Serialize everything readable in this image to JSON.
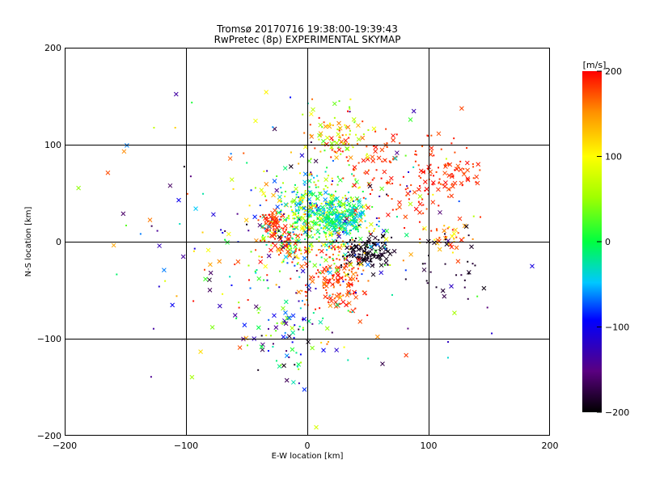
{
  "chart_data": {
    "type": "scatter",
    "title": "Tromsø 20170716 19:38:00-19:39:43",
    "subtitle": "RwPretec (8p) EXPERIMENTAL SKYMAP",
    "xlabel": "E-W location [km]",
    "ylabel": "N-S location [km]",
    "xlim": [
      -200,
      200
    ],
    "ylim": [
      -200,
      200
    ],
    "xticks": [
      -200,
      -100,
      0,
      100,
      200
    ],
    "yticks": [
      -200,
      -100,
      0,
      100,
      200
    ],
    "grid": true,
    "colorbar": {
      "label": "[m/s]",
      "range": [
        -200,
        200
      ],
      "ticks": [
        200,
        100,
        0,
        -100,
        -200
      ],
      "colormap": "black-purple-blue-cyan-green-yellow-red"
    },
    "marker_styles": [
      "dot",
      "x"
    ],
    "clusters": [
      {
        "cx": 10,
        "cy": 25,
        "sx": 22,
        "sy": 22,
        "n": 500,
        "v": [
          -80,
          120
        ]
      },
      {
        "cx": 25,
        "cy": 25,
        "sx": 10,
        "sy": 8,
        "n": 150,
        "v": [
          -60,
          20
        ]
      },
      {
        "cx": 50,
        "cy": -10,
        "sx": 10,
        "sy": 8,
        "n": 120,
        "v": [
          -200,
          -180
        ]
      },
      {
        "cx": 25,
        "cy": -40,
        "sx": 15,
        "sy": 18,
        "n": 150,
        "v": [
          150,
          200
        ]
      },
      {
        "cx": 80,
        "cy": 70,
        "sx": 30,
        "sy": 25,
        "n": 150,
        "v": [
          170,
          200
        ]
      },
      {
        "cx": 120,
        "cy": 70,
        "sx": 10,
        "sy": 8,
        "n": 40,
        "v": [
          170,
          200
        ]
      },
      {
        "cx": 25,
        "cy": 110,
        "sx": 15,
        "sy": 15,
        "n": 90,
        "v": [
          20,
          200
        ]
      },
      {
        "cx": 115,
        "cy": 5,
        "sx": 10,
        "sy": 8,
        "n": 40,
        "v": [
          90,
          200
        ]
      },
      {
        "cx": 120,
        "cy": -25,
        "sx": 15,
        "sy": 15,
        "n": 30,
        "v": [
          -200,
          -170
        ]
      },
      {
        "cx": -30,
        "cy": 20,
        "sx": 5,
        "sy": 5,
        "n": 60,
        "v": [
          170,
          200
        ]
      },
      {
        "cx": -20,
        "cy": 0,
        "sx": 10,
        "sy": 10,
        "n": 50,
        "v": [
          170,
          200
        ]
      },
      {
        "cx": -20,
        "cy": -100,
        "sx": 15,
        "sy": 25,
        "n": 60,
        "v": [
          -200,
          60
        ]
      },
      {
        "cx": 0,
        "cy": 0,
        "sx": 70,
        "sy": 70,
        "n": 320,
        "v": [
          -200,
          200
        ]
      }
    ]
  }
}
